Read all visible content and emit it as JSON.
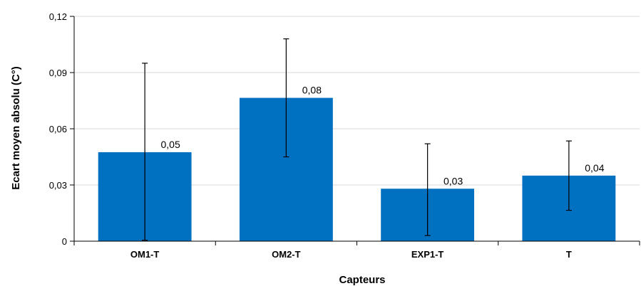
{
  "chart_data": {
    "type": "bar",
    "categories": [
      "OM1-T",
      "OM2-T",
      "EXP1-T",
      "T"
    ],
    "values": [
      0.0475,
      0.0765,
      0.028,
      0.035
    ],
    "error_low": [
      0.0005,
      0.045,
      0.003,
      0.0165
    ],
    "error_high": [
      0.095,
      0.108,
      0.052,
      0.0535
    ],
    "data_labels": [
      "0,05",
      "0,08",
      "0,03",
      "0,04"
    ],
    "yticks": [
      0,
      0.03,
      0.06,
      0.09,
      0.12
    ],
    "ytick_labels": [
      "0",
      "0,03",
      "0,06",
      "0,09",
      "0,12"
    ],
    "ylim": [
      0,
      0.12
    ],
    "xlabel": "Capteurs",
    "ylabel": "Ecart moyen absolu (C°)",
    "grid": true,
    "legend": "none",
    "colors": {
      "bar": "#0070c0",
      "grid": "#d9d9d9",
      "axis": "#000000",
      "error_bar": "#000000"
    }
  }
}
